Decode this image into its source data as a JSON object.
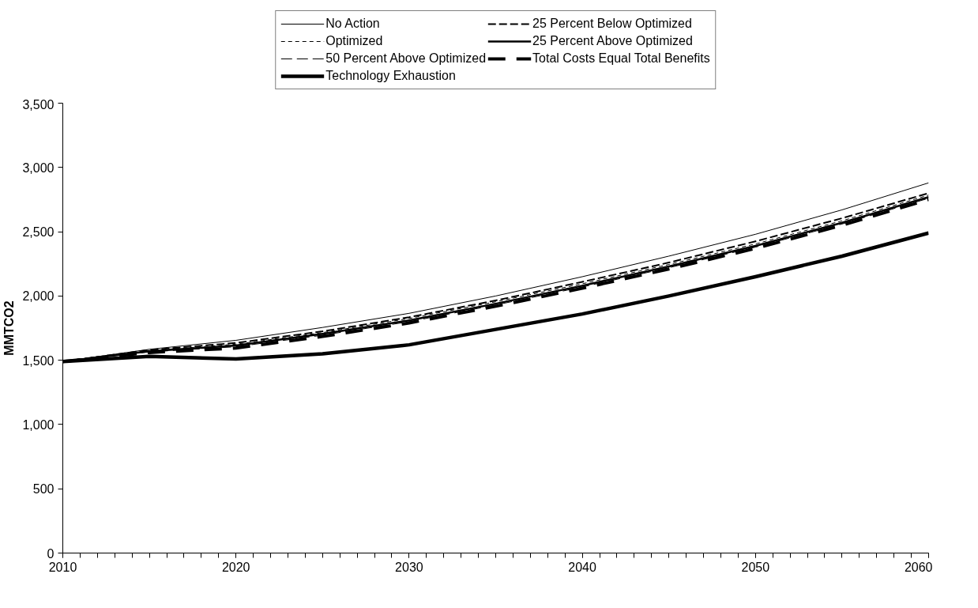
{
  "chart_data": {
    "type": "line",
    "ylabel": "MMTCO2",
    "x": [
      2010,
      2015,
      2020,
      2025,
      2030,
      2035,
      2040,
      2045,
      2050,
      2055,
      2060
    ],
    "series": [
      {
        "name": "No Action",
        "color": "#000000",
        "line_style": "solid",
        "values": [
          1490,
          1585,
          1655,
          1755,
          1865,
          2000,
          2150,
          2310,
          2480,
          2670,
          2880
        ]
      },
      {
        "name": "25 Percent Below Optimized",
        "color": "#000000",
        "line_style": "dashed",
        "values": [
          1490,
          1580,
          1635,
          1725,
          1835,
          1965,
          2110,
          2260,
          2425,
          2605,
          2800
        ]
      },
      {
        "name": "Optimized",
        "color": "#000000",
        "line_style": "dashed",
        "values": [
          1490,
          1575,
          1625,
          1715,
          1825,
          1955,
          2095,
          2245,
          2405,
          2585,
          2785
        ]
      },
      {
        "name": "25 Percent Above Optimized",
        "color": "#000000",
        "line_style": "solid",
        "values": [
          1490,
          1570,
          1615,
          1705,
          1810,
          1940,
          2080,
          2230,
          2390,
          2570,
          2770
        ]
      },
      {
        "name": "50 Percent Above Optimized",
        "color": "#000000",
        "line_style": "dashed",
        "values": [
          1490,
          1565,
          1605,
          1695,
          1800,
          1930,
          2070,
          2220,
          2380,
          2560,
          2760
        ]
      },
      {
        "name": "Total Costs Equal Total Benefits",
        "color": "#000000",
        "line_style": "dashed",
        "values": [
          1490,
          1560,
          1595,
          1685,
          1790,
          1920,
          2060,
          2210,
          2370,
          2550,
          2750
        ]
      },
      {
        "name": "Technology Exhaustion",
        "color": "#000000",
        "line_style": "solid",
        "values": [
          1490,
          1530,
          1510,
          1550,
          1620,
          1740,
          1860,
          2000,
          2150,
          2310,
          2490
        ]
      }
    ],
    "xlim": [
      2010,
      2060
    ],
    "xticks": [
      2010,
      2020,
      2030,
      2040,
      2050,
      2060
    ],
    "ylim": [
      0,
      3500
    ],
    "yticks": [
      0,
      500,
      {
        "value": 1000,
        "label": "1,000"
      },
      {
        "value": 1500,
        "label": "1,500"
      },
      {
        "value": 2000,
        "label": "2,000"
      },
      {
        "value": 2500,
        "label": "2,500"
      },
      {
        "value": 3000,
        "label": "3,000"
      },
      {
        "value": 3500,
        "label": "3,500"
      }
    ],
    "grid": false,
    "legend": "top"
  }
}
